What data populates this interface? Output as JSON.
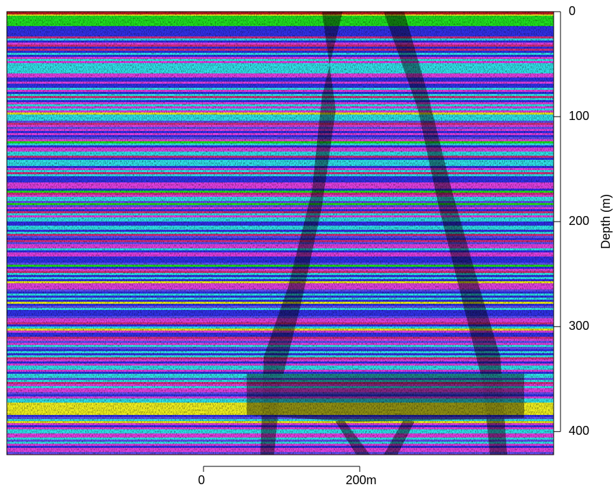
{
  "chart_data": {
    "type": "image",
    "y_label": "Depth (m)",
    "ylim": [
      0,
      422
    ],
    "yticks": [
      0,
      100,
      200,
      300,
      400
    ],
    "y_reversed": true,
    "scale_bar": {
      "labels": [
        "0",
        "200m"
      ]
    }
  }
}
